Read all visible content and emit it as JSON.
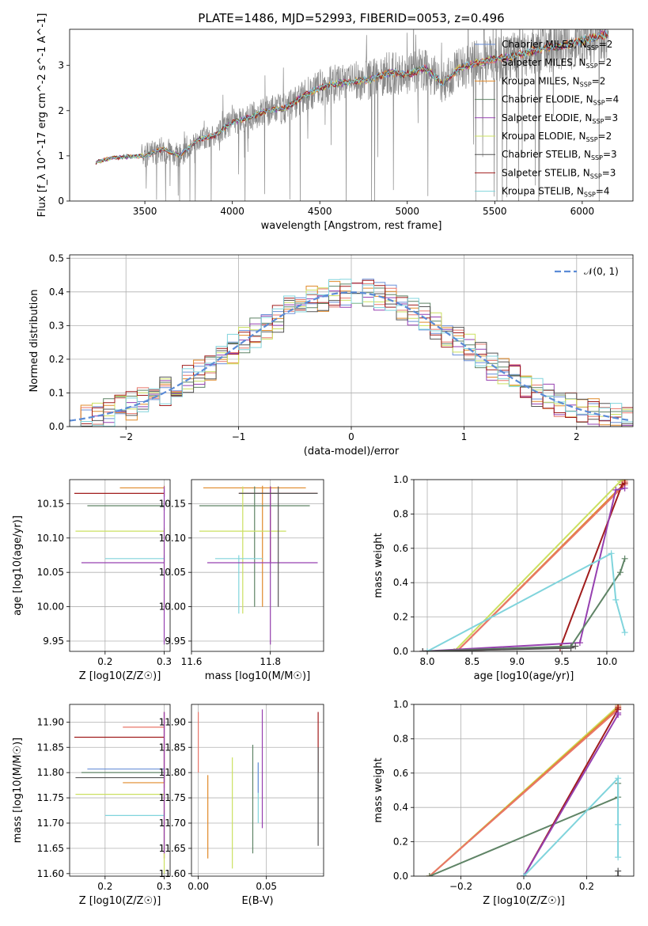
{
  "colors": {
    "chabrier_miles": "#6a8fd8",
    "salpeter_miles": "#e8766a",
    "kroupa_miles": "#e08a2a",
    "chabrier_elodie": "#5f8466",
    "salpeter_elodie": "#9640b0",
    "kroupa_elodie": "#cbe060",
    "chabrier_stelib": "#555555",
    "salpeter_stelib": "#a01c1c",
    "kroupa_stelib": "#80d4dc",
    "spectrum": "#888888",
    "gaussian": "#5b8bd6",
    "grid": "#b0b0b0"
  },
  "chart_data": [
    {
      "id": "spectrum",
      "type": "line",
      "title": "PLATE=1486, MJD=52993, FIBERID=0053, z=0.496",
      "xlabel": "wavelength [Angstrom, rest frame]",
      "ylabel": "Flux [f_λ 10^-17 erg cm^-2 s^-1 A^-1]",
      "xlim": [
        3070,
        6290
      ],
      "ylim": [
        0,
        3.8
      ],
      "xticks": [
        "3500",
        "4000",
        "4500",
        "5000",
        "5500",
        "6000"
      ],
      "yticks": [
        "0",
        "1",
        "2",
        "3"
      ],
      "grid": false,
      "legend_position": "top-right",
      "continuum_knots": {
        "x": [
          3220,
          3300,
          3400,
          3500,
          3600,
          3700,
          3800,
          3900,
          4000,
          4100,
          4200,
          4300,
          4400,
          4500,
          4600,
          4700,
          4800,
          4900,
          5000,
          5100,
          5200,
          5300,
          5400,
          5500,
          5600,
          5700,
          5800,
          5900,
          6000,
          6100,
          6150
        ],
        "y": [
          0.85,
          0.95,
          0.98,
          1.0,
          1.15,
          1.0,
          1.35,
          1.45,
          1.75,
          1.85,
          2.0,
          2.05,
          2.3,
          2.5,
          2.6,
          2.65,
          2.7,
          2.85,
          2.8,
          2.95,
          2.6,
          2.95,
          3.05,
          3.15,
          3.2,
          3.3,
          3.4,
          3.45,
          3.55,
          3.65,
          3.7
        ]
      },
      "legend": [
        {
          "label": "Chabrier MILES, N",
          "sub": "SSP",
          "suffix": "=2",
          "color_key": "chabrier_miles"
        },
        {
          "label": "Salpeter MILES, N",
          "sub": "SSP",
          "suffix": "=2",
          "color_key": "salpeter_miles"
        },
        {
          "label": "Kroupa MILES, N",
          "sub": "SSP",
          "suffix": "=2",
          "color_key": "kroupa_miles"
        },
        {
          "label": "Chabrier ELODIE, N",
          "sub": "SSP",
          "suffix": "=4",
          "color_key": "chabrier_elodie"
        },
        {
          "label": "Salpeter ELODIE, N",
          "sub": "SSP",
          "suffix": "=3",
          "color_key": "salpeter_elodie"
        },
        {
          "label": "Kroupa ELODIE, N",
          "sub": "SSP",
          "suffix": "=2",
          "color_key": "kroupa_elodie"
        },
        {
          "label": "Chabrier STELIB, N",
          "sub": "SSP",
          "suffix": "=3",
          "color_key": "chabrier_stelib"
        },
        {
          "label": "Salpeter STELIB, N",
          "sub": "SSP",
          "suffix": "=3",
          "color_key": "salpeter_stelib"
        },
        {
          "label": "Kroupa STELIB, N",
          "sub": "SSP",
          "suffix": "=4",
          "color_key": "kroupa_stelib"
        }
      ]
    },
    {
      "id": "residuals",
      "type": "line",
      "xlabel": "(data-model)/error",
      "ylabel": "Normed distribution",
      "xlim": [
        -2.5,
        2.5
      ],
      "ylim": [
        0,
        0.51
      ],
      "xticks": [
        "−2",
        "−1",
        "0",
        "1",
        "2"
      ],
      "yticks": [
        "0.0",
        "0.1",
        "0.2",
        "0.3",
        "0.4",
        "0.5"
      ],
      "grid": true,
      "legend_position": "top-right",
      "legend": [
        {
          "label": "𝒩(0, 1)",
          "color_key": "gaussian"
        }
      ]
    },
    {
      "id": "age_vs_Z",
      "type": "scatter",
      "xlabel": "Z [log10(Z/Z☉)]",
      "ylabel": "age [log10(age/yr)]",
      "xlim": [
        0.14,
        0.31
      ],
      "ylim": [
        9.935,
        10.185
      ],
      "xticks": [
        "0.2",
        "0.3"
      ],
      "yticks": [
        "9.95",
        "10.00",
        "10.05",
        "10.10",
        "10.15"
      ],
      "grid": true,
      "points": [
        {
          "color_key": "salpeter_stelib",
          "x": 0.3,
          "y": 10.165,
          "xlo": 0.148,
          "xhi": 0.3,
          "ylo": 10.16,
          "yhi": 10.17
        },
        {
          "color_key": "kroupa_miles",
          "x": 0.3,
          "y": 10.173,
          "xlo": 0.225,
          "xhi": 0.3,
          "ylo": 10.17,
          "yhi": 10.176
        },
        {
          "color_key": "chabrier_elodie",
          "x": 0.3,
          "y": 10.147,
          "xlo": 0.17,
          "xhi": 0.3,
          "ylo": 10.14,
          "yhi": 10.155
        },
        {
          "color_key": "kroupa_elodie",
          "x": 0.3,
          "y": 10.11,
          "xlo": 0.15,
          "xhi": 0.3,
          "ylo": 10.0,
          "yhi": 10.115
        },
        {
          "color_key": "kroupa_stelib",
          "x": 0.3,
          "y": 10.07,
          "xlo": 0.2,
          "xhi": 0.3,
          "ylo": 10.065,
          "yhi": 10.075
        },
        {
          "color_key": "salpeter_elodie",
          "x": 0.3,
          "y": 10.064,
          "xlo": 0.16,
          "xhi": 0.3,
          "ylo": 9.945,
          "yhi": 10.175
        }
      ]
    },
    {
      "id": "age_vs_mass",
      "type": "scatter",
      "xlabel": "mass [log10(M/M☉)]",
      "ylabel": "",
      "xlim": [
        11.6,
        11.935
      ],
      "ylim": [
        9.935,
        10.185
      ],
      "xticks": [
        "11.6",
        "11.8"
      ],
      "yticks": [
        "9.95",
        "10.00",
        "10.05",
        "10.10",
        "10.15"
      ],
      "grid": true,
      "points": [
        {
          "color_key": "kroupa_miles",
          "x": 11.78,
          "y": 10.173,
          "xlo": 11.63,
          "xhi": 11.89,
          "ylo": 10.0,
          "yhi": 10.176
        },
        {
          "color_key": "salpeter_stelib",
          "x": 11.8,
          "y": 10.165,
          "xlo": 11.72,
          "xhi": 11.92,
          "ylo": 10.065,
          "yhi": 10.175
        },
        {
          "color_key": "chabrier_elodie",
          "x": 11.76,
          "y": 10.147,
          "xlo": 11.62,
          "xhi": 11.9,
          "ylo": 10.0,
          "yhi": 10.175
        },
        {
          "color_key": "kroupa_elodie",
          "x": 11.73,
          "y": 10.11,
          "xlo": 11.62,
          "xhi": 11.84,
          "ylo": 9.99,
          "yhi": 10.175
        },
        {
          "color_key": "kroupa_stelib",
          "x": 11.72,
          "y": 10.07,
          "xlo": 11.66,
          "xhi": 11.78,
          "ylo": 9.99,
          "yhi": 10.075
        },
        {
          "color_key": "salpeter_elodie",
          "x": 11.8,
          "y": 10.064,
          "xlo": 11.64,
          "xhi": 11.92,
          "ylo": 9.945,
          "yhi": 10.175
        },
        {
          "color_key": "chabrier_stelib",
          "x": 11.82,
          "y": 10.165,
          "xlo": 11.72,
          "xhi": 11.92,
          "ylo": 10.0,
          "yhi": 10.175
        }
      ]
    },
    {
      "id": "cumulative_mass_vs_age",
      "type": "line",
      "xlabel": "age [log10(age/yr)]",
      "ylabel": "mass weight",
      "xlim": [
        7.85,
        10.3
      ],
      "ylim": [
        0,
        1.0
      ],
      "xticks": [
        "8.0",
        "8.5",
        "9.0",
        "9.5",
        "10.0"
      ],
      "yticks": [
        "0.0",
        "0.2",
        "0.4",
        "0.6",
        "0.8",
        "1.0"
      ],
      "grid": true,
      "series": [
        {
          "color_key": "kroupa_elodie",
          "x": [
            8.3,
            10.15,
            10.2
          ],
          "y": [
            0.0,
            0.99,
            1.0
          ]
        },
        {
          "color_key": "kroupa_miles",
          "x": [
            8.33,
            10.2,
            10.2
          ],
          "y": [
            0.0,
            0.98,
            1.0
          ]
        },
        {
          "color_key": "salpeter_miles",
          "x": [
            8.33,
            10.2,
            10.2
          ],
          "y": [
            0.0,
            0.97,
            0.99
          ]
        },
        {
          "color_key": "salpeter_stelib",
          "x": [
            7.95,
            9.48,
            10.17,
            10.2
          ],
          "y": [
            0.0,
            0.02,
            0.97,
            0.98
          ]
        },
        {
          "color_key": "salpeter_elodie",
          "x": [
            7.95,
            9.7,
            10.1,
            10.2
          ],
          "y": [
            0.0,
            0.05,
            0.94,
            0.95
          ]
        },
        {
          "color_key": "chabrier_elodie",
          "x": [
            7.95,
            9.6,
            10.15,
            10.2
          ],
          "y": [
            0.0,
            0.03,
            0.46,
            0.54
          ]
        },
        {
          "color_key": "kroupa_stelib",
          "x": [
            8.0,
            10.05,
            10.1,
            10.2
          ],
          "y": [
            0.0,
            0.57,
            0.3,
            0.11
          ]
        },
        {
          "color_key": "chabrier_stelib",
          "x": [
            7.95,
            9.6,
            9.65
          ],
          "y": [
            0.0,
            0.02,
            0.03
          ]
        }
      ]
    },
    {
      "id": "mass_vs_Z",
      "type": "scatter",
      "xlabel": "Z [log10(Z/Z☉)]",
      "ylabel": "mass [log10(M/M☉)]",
      "xlim": [
        0.14,
        0.31
      ],
      "ylim": [
        11.595,
        11.935
      ],
      "xticks": [
        "0.2",
        "0.3"
      ],
      "yticks": [
        "11.60",
        "11.65",
        "11.70",
        "11.75",
        "11.80",
        "11.85",
        "11.90"
      ],
      "grid": true,
      "points": [
        {
          "color_key": "salpeter_miles",
          "x": 0.3,
          "y": 11.89,
          "xlo": 0.23,
          "xhi": 0.3,
          "ylo": 11.8,
          "yhi": 11.92
        },
        {
          "color_key": "salpeter_stelib",
          "x": 0.3,
          "y": 11.87,
          "xlo": 0.148,
          "xhi": 0.3,
          "ylo": 11.63,
          "yhi": 11.92
        },
        {
          "color_key": "chabrier_miles",
          "x": 0.3,
          "y": 11.807,
          "xlo": 0.17,
          "xhi": 0.3,
          "ylo": 11.8,
          "yhi": 11.81
        },
        {
          "color_key": "chabrier_elodie",
          "x": 0.3,
          "y": 11.8,
          "xlo": 0.16,
          "xhi": 0.3,
          "ylo": 11.79,
          "yhi": 11.81
        },
        {
          "color_key": "chabrier_stelib",
          "x": 0.3,
          "y": 11.79,
          "xlo": 0.15,
          "xhi": 0.3,
          "ylo": 11.78,
          "yhi": 11.8
        },
        {
          "color_key": "kroupa_miles",
          "x": 0.3,
          "y": 11.78,
          "xlo": 0.23,
          "xhi": 0.3,
          "ylo": 11.77,
          "yhi": 11.79
        },
        {
          "color_key": "kroupa_elodie",
          "x": 0.3,
          "y": 11.757,
          "xlo": 0.15,
          "xhi": 0.3,
          "ylo": 11.6,
          "yhi": 11.76
        },
        {
          "color_key": "kroupa_stelib",
          "x": 0.3,
          "y": 11.715,
          "xlo": 0.2,
          "xhi": 0.3,
          "ylo": 11.71,
          "yhi": 11.72
        },
        {
          "color_key": "salpeter_elodie",
          "x": 0.3,
          "y": 11.8,
          "xlo": 0.3,
          "xhi": 0.3,
          "ylo": 11.64,
          "yhi": 11.92
        }
      ]
    },
    {
      "id": "mass_vs_ebv",
      "type": "scatter",
      "xlabel": "E(B-V)",
      "ylabel": "",
      "xlim": [
        -0.005,
        0.092
      ],
      "ylim": [
        11.595,
        11.935
      ],
      "xticks": [
        "0.00",
        "0.05"
      ],
      "yticks": [
        "11.60",
        "11.65",
        "11.70",
        "11.75",
        "11.80",
        "11.85",
        "11.90"
      ],
      "grid": true,
      "points": [
        {
          "color_key": "salpeter_miles",
          "x": 0.0,
          "y": 11.89,
          "xlo": 0.0,
          "xhi": 0.0,
          "ylo": 11.8,
          "yhi": 11.92
        },
        {
          "color_key": "kroupa_miles",
          "x": 0.007,
          "y": 11.71,
          "xlo": 0.007,
          "xhi": 0.007,
          "ylo": 11.63,
          "yhi": 11.795
        },
        {
          "color_key": "kroupa_elodie",
          "x": 0.025,
          "y": 11.72,
          "xlo": 0.025,
          "xhi": 0.025,
          "ylo": 11.61,
          "yhi": 11.83
        },
        {
          "color_key": "chabrier_elodie",
          "x": 0.04,
          "y": 11.75,
          "xlo": 0.04,
          "xhi": 0.04,
          "ylo": 11.64,
          "yhi": 11.855
        },
        {
          "color_key": "kroupa_stelib",
          "x": 0.044,
          "y": 11.76,
          "xlo": 0.044,
          "xhi": 0.044,
          "ylo": 11.7,
          "yhi": 11.82
        },
        {
          "color_key": "salpeter_elodie",
          "x": 0.047,
          "y": 11.81,
          "xlo": 0.047,
          "xhi": 0.047,
          "ylo": 11.69,
          "yhi": 11.925
        },
        {
          "color_key": "chabrier_miles",
          "x": 0.044,
          "y": 11.79,
          "xlo": 0.044,
          "xhi": 0.044,
          "ylo": 11.76,
          "yhi": 11.82
        },
        {
          "color_key": "salpeter_stelib",
          "x": 0.088,
          "y": 11.87,
          "xlo": 0.088,
          "xhi": 0.088,
          "ylo": 11.8,
          "yhi": 11.92
        },
        {
          "color_key": "chabrier_stelib",
          "x": 0.088,
          "y": 11.75,
          "xlo": 0.088,
          "xhi": 0.088,
          "ylo": 11.655,
          "yhi": 11.85
        }
      ]
    },
    {
      "id": "cumulative_mass_vs_Z",
      "type": "line",
      "xlabel": "Z [log10(Z/Z☉)]",
      "ylabel": "mass weight",
      "xlim": [
        -0.35,
        0.35
      ],
      "ylim": [
        0,
        1.0
      ],
      "xticks": [
        "−0.2",
        "0.0",
        "0.2"
      ],
      "yticks": [
        "0.0",
        "0.2",
        "0.4",
        "0.6",
        "0.8",
        "1.0"
      ],
      "grid": true,
      "series": [
        {
          "color_key": "kroupa_elodie",
          "x": [
            -0.3,
            0.3,
            0.3
          ],
          "y": [
            0.0,
            0.99,
            1.0
          ]
        },
        {
          "color_key": "kroupa_miles",
          "x": [
            -0.3,
            0.3,
            0.3
          ],
          "y": [
            0.0,
            0.98,
            1.0
          ]
        },
        {
          "color_key": "salpeter_miles",
          "x": [
            -0.3,
            0.3,
            0.3
          ],
          "y": [
            0.0,
            0.97,
            0.99
          ]
        },
        {
          "color_key": "chabrier_elodie",
          "x": [
            -0.3,
            0.3,
            0.3
          ],
          "y": [
            0.0,
            0.46,
            0.54
          ]
        },
        {
          "color_key": "salpeter_stelib",
          "x": [
            0.0,
            0.3,
            0.3
          ],
          "y": [
            0.0,
            0.97,
            0.98
          ]
        },
        {
          "color_key": "salpeter_elodie",
          "x": [
            0.0,
            0.3,
            0.3
          ],
          "y": [
            0.0,
            0.94,
            0.95
          ]
        },
        {
          "color_key": "kroupa_stelib",
          "x": [
            0.0,
            0.3,
            0.3,
            0.3
          ],
          "y": [
            0.0,
            0.57,
            0.3,
            0.11
          ]
        },
        {
          "color_key": "chabrier_stelib",
          "x": [
            0.3,
            0.3
          ],
          "y": [
            0.0,
            0.03
          ]
        }
      ]
    }
  ]
}
